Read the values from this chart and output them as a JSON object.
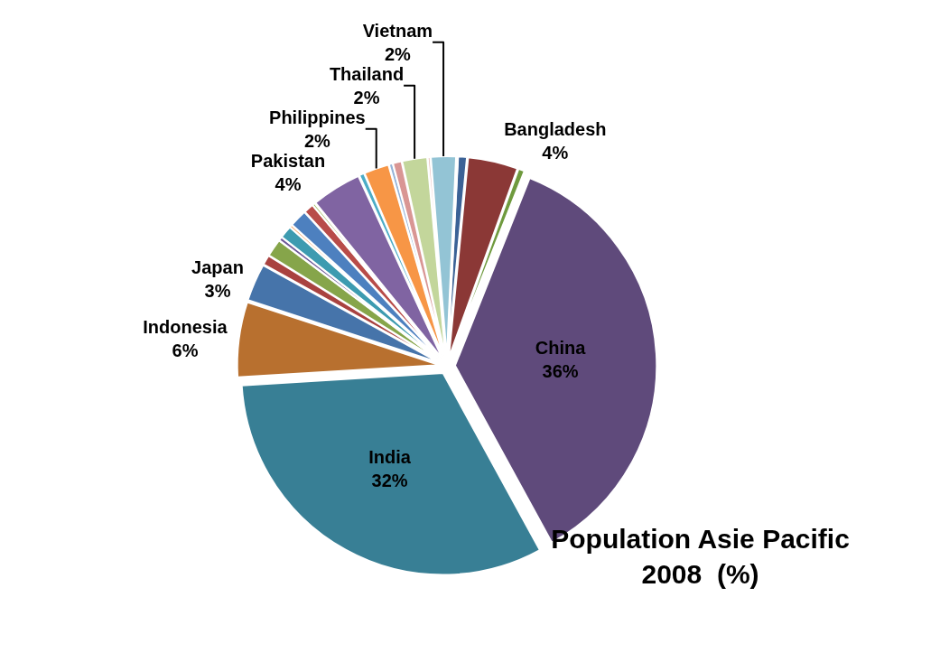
{
  "chart_data": {
    "type": "pie",
    "title": "Population Asie Pacific\n2008  (%)",
    "categories": [
      null,
      "Bangladesh",
      null,
      "China",
      "India",
      "Indonesia",
      "Japan",
      null,
      null,
      null,
      null,
      null,
      null,
      null,
      null,
      "Pakistan",
      null,
      "Philippines",
      null,
      null,
      "Thailand",
      null,
      "Vietnam",
      null
    ],
    "values": [
      0.7,
      4,
      0.5,
      36,
      32,
      6,
      3,
      0.8,
      1.4,
      0.3,
      1.0,
      0.2,
      1.4,
      0.8,
      0.2,
      4,
      0.4,
      2,
      0.3,
      0.7,
      2,
      0.2,
      2,
      0.1
    ],
    "value_labels": [
      null,
      "4%",
      null,
      "36%",
      "32%",
      "6%",
      "3%",
      null,
      null,
      null,
      null,
      null,
      null,
      null,
      null,
      "4%",
      null,
      "2%",
      null,
      null,
      "2%",
      null,
      "2%",
      null
    ],
    "colors": [
      "#3b6296",
      "#8b3836",
      "#6f9a3e",
      "#5f4a7b",
      "#387f95",
      "#b8702f",
      "#4674aa",
      "#a94240",
      "#86a54a",
      "#6e5898",
      "#3d9bb0",
      "#f79a52",
      "#4d80bf",
      "#b84c49",
      "#9bbb59",
      "#8064a2",
      "#4bacc6",
      "#f79646",
      "#95b3d7",
      "#d99694",
      "#c3d69b",
      "#e6b9b8",
      "#93c4d5",
      "#fac090"
    ]
  }
}
